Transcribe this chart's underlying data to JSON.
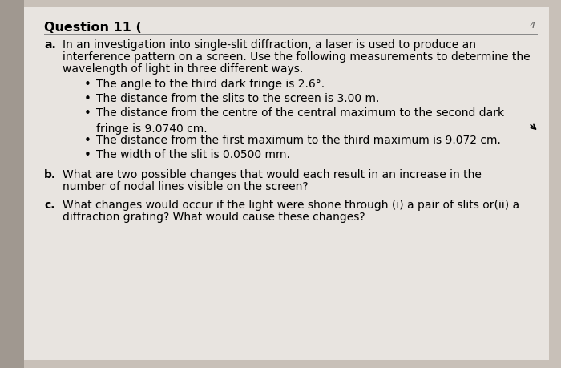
{
  "bg_color": "#c8c0b8",
  "card_color": "#e8e4e0",
  "title": "Question 11 (",
  "title_fontsize": 11.5,
  "corner_mark": "4",
  "body_fontsize": 10.0,
  "part_a_label": "a.",
  "part_a_line1": "In an investigation into single-slit diffraction, a laser is used to produce an",
  "part_a_line2": "interference pattern on a screen. Use the following measurements to determine the",
  "part_a_line3": "wavelength of light in three different ways.",
  "bullets": [
    "The angle to the third dark fringe is 2.6°.",
    "The distance from the slits to the screen is 3.00 m.",
    "The distance from the centre of the central maximum to the second dark\nfringe is 9.0740 cm.",
    "The distance from the first maximum to the third maximum is 9.072 cm.",
    "The width of the slit is 0.0500 mm."
  ],
  "part_b_label": "b.",
  "part_b_line1": "What are two possible changes that would each result in an increase in the",
  "part_b_line2": "number of nodal lines visible on the screen?",
  "part_c_label": "c.",
  "part_c_line1": "What changes would occur if the light were shone through (i) a pair of slits or(ii) a",
  "part_c_line2": "diffraction grating? What would cause these changes?"
}
